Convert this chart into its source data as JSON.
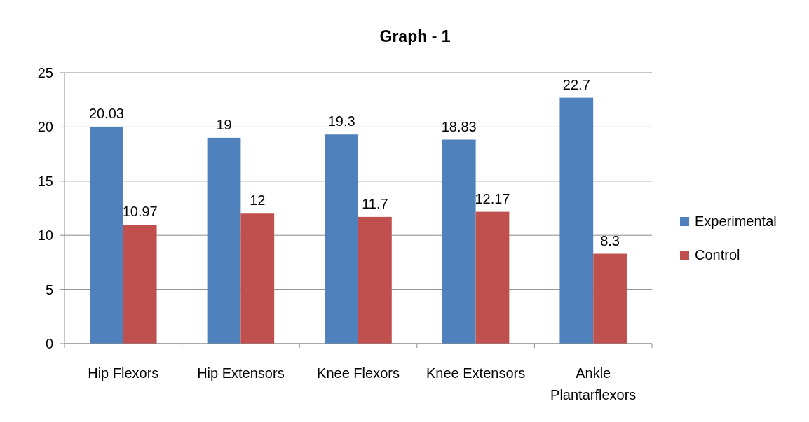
{
  "chart_data": {
    "type": "bar",
    "title": "Graph - 1",
    "categories": [
      "Hip Flexors",
      "Hip Extensors",
      "Knee Flexors",
      "Knee Extensors",
      "Ankle Plantarflexors"
    ],
    "series": [
      {
        "name": "Experimental",
        "color": "#4f81bd",
        "values": [
          20.03,
          19,
          19.3,
          18.83,
          22.7
        ]
      },
      {
        "name": "Control",
        "color": "#c0504d",
        "values": [
          10.97,
          12,
          11.7,
          12.17,
          8.3
        ]
      }
    ],
    "ylim": [
      0,
      25
    ],
    "yticks": [
      0,
      5,
      10,
      15,
      20,
      25
    ],
    "grid": "y",
    "legend": "right",
    "data_labels": true
  }
}
